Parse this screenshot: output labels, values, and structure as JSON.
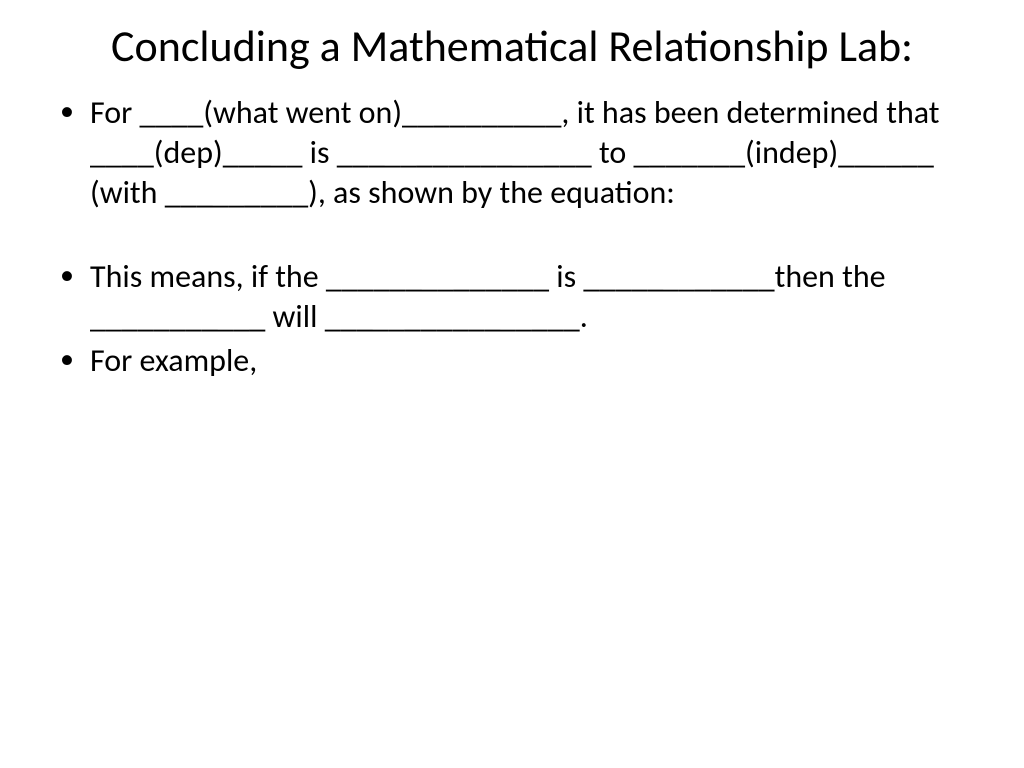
{
  "slide": {
    "title": "Concluding a Mathematical Relationship Lab:",
    "bullets": [
      {
        "text": "For ____(what went on)__________, it has been determined that ____(dep)_____ is ________________ to _______(indep)______ (with _________), as shown by the equation:"
      },
      {
        "text": "This means, if the ______________ is ____________then the ___________ will ________________."
      },
      {
        "text": "For example,"
      }
    ],
    "background_color": "#ffffff",
    "text_color": "#000000",
    "title_fontsize": 44,
    "body_fontsize": 32,
    "font_family": "Calibri"
  }
}
